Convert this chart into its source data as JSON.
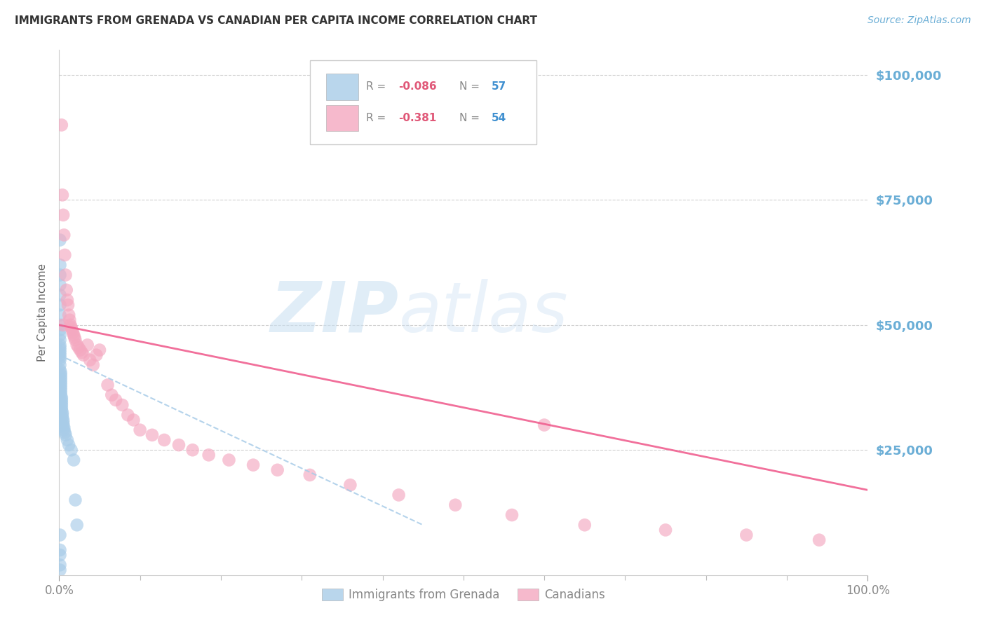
{
  "title": "IMMIGRANTS FROM GRENADA VS CANADIAN PER CAPITA INCOME CORRELATION CHART",
  "source": "Source: ZipAtlas.com",
  "ylabel": "Per Capita Income",
  "legend_blue_label": "Immigrants from Grenada",
  "legend_pink_label": "Canadians",
  "legend_blue_r": "R = -0.086",
  "legend_blue_n": "N = 57",
  "legend_pink_r": "R = -0.381",
  "legend_pink_n": "N = 54",
  "blue_color": "#a8cce8",
  "pink_color": "#f4a8c0",
  "blue_line_color": "#a8cce8",
  "pink_line_color": "#f06090",
  "title_color": "#333333",
  "source_color": "#6baed6",
  "ytick_color": "#6baed6",
  "xtick_color": "#888888",
  "grid_color": "#d0d0d0",
  "watermark_zip": "ZIP",
  "watermark_atlas": "atlas",
  "xmin": 0.0,
  "xmax": 1.0,
  "ymin": 0,
  "ymax": 105000,
  "yticks": [
    0,
    25000,
    50000,
    75000,
    100000
  ],
  "blue_scatter_x": [
    0.001,
    0.001,
    0.001,
    0.001,
    0.001,
    0.001,
    0.001,
    0.001,
    0.001,
    0.001,
    0.001,
    0.001,
    0.001,
    0.001,
    0.001,
    0.001,
    0.001,
    0.001,
    0.001,
    0.001,
    0.002,
    0.002,
    0.002,
    0.002,
    0.002,
    0.002,
    0.002,
    0.002,
    0.002,
    0.002,
    0.003,
    0.003,
    0.003,
    0.003,
    0.003,
    0.003,
    0.004,
    0.004,
    0.004,
    0.005,
    0.005,
    0.005,
    0.006,
    0.006,
    0.007,
    0.008,
    0.01,
    0.012,
    0.015,
    0.018,
    0.02,
    0.022,
    0.001,
    0.001,
    0.001,
    0.001,
    0.001
  ],
  "blue_scatter_y": [
    67000,
    62000,
    60000,
    58000,
    56000,
    54000,
    52000,
    50000,
    49000,
    48000,
    47000,
    46000,
    45500,
    45000,
    44500,
    44000,
    43500,
    43000,
    42000,
    41000,
    40500,
    40000,
    39500,
    39000,
    38500,
    38000,
    37500,
    37000,
    36500,
    36000,
    35500,
    35000,
    34500,
    34000,
    33500,
    33000,
    32500,
    32000,
    31500,
    31000,
    30500,
    30000,
    29500,
    29000,
    28500,
    28000,
    27000,
    26000,
    25000,
    23000,
    15000,
    10000,
    8000,
    5000,
    4000,
    2000,
    1000
  ],
  "pink_scatter_x": [
    0.003,
    0.004,
    0.005,
    0.006,
    0.007,
    0.008,
    0.009,
    0.01,
    0.011,
    0.012,
    0.013,
    0.014,
    0.015,
    0.016,
    0.017,
    0.018,
    0.019,
    0.02,
    0.022,
    0.024,
    0.026,
    0.028,
    0.03,
    0.035,
    0.038,
    0.042,
    0.046,
    0.05,
    0.06,
    0.065,
    0.07,
    0.078,
    0.085,
    0.092,
    0.1,
    0.115,
    0.13,
    0.148,
    0.165,
    0.185,
    0.21,
    0.24,
    0.27,
    0.31,
    0.36,
    0.42,
    0.49,
    0.56,
    0.65,
    0.75,
    0.85,
    0.94,
    0.005,
    0.6
  ],
  "pink_scatter_y": [
    90000,
    76000,
    72000,
    68000,
    64000,
    60000,
    57000,
    55000,
    54000,
    52000,
    51000,
    50000,
    49500,
    49000,
    48500,
    48000,
    47500,
    47000,
    46000,
    45500,
    45000,
    44500,
    44000,
    46000,
    43000,
    42000,
    44000,
    45000,
    38000,
    36000,
    35000,
    34000,
    32000,
    31000,
    29000,
    28000,
    27000,
    26000,
    25000,
    24000,
    23000,
    22000,
    21000,
    20000,
    18000,
    16000,
    14000,
    12000,
    10000,
    9000,
    8000,
    7000,
    50000,
    30000
  ],
  "blue_trend_x": [
    0.0,
    0.45
  ],
  "blue_trend_y": [
    44000,
    10000
  ],
  "pink_trend_x": [
    0.0,
    1.0
  ],
  "pink_trend_y": [
    50000,
    17000
  ]
}
